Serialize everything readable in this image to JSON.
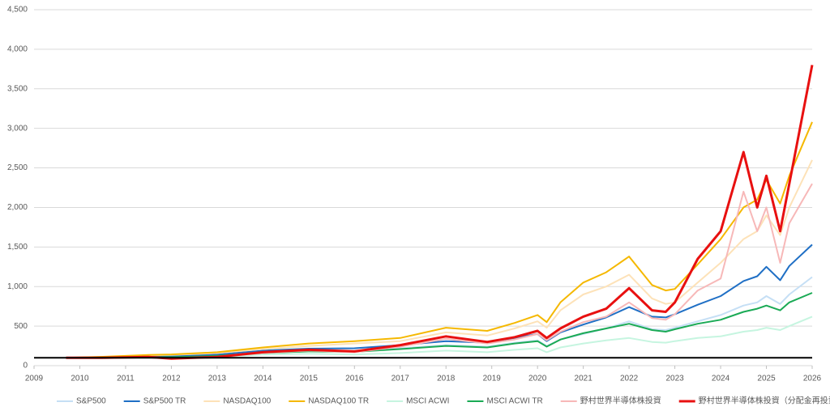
{
  "chart_data": {
    "type": "line",
    "x": [
      2009.7,
      2010.5,
      2011.5,
      2012,
      2013,
      2014,
      2015,
      2016,
      2017,
      2018,
      2018.9,
      2019.5,
      2020,
      2020.2,
      2020.5,
      2021,
      2021.5,
      2022,
      2022.5,
      2022.8,
      2023,
      2023.5,
      2024,
      2024.5,
      2024.8,
      2025,
      2025.3,
      2025.5,
      2026
    ],
    "series": [
      {
        "name": "S&P500",
        "color": "#c5dff5",
        "values": [
          100,
          105,
          115,
          110,
          130,
          170,
          190,
          190,
          220,
          260,
          240,
          290,
          320,
          250,
          330,
          400,
          470,
          560,
          460,
          450,
          480,
          560,
          640,
          760,
          800,
          880,
          780,
          900,
          1120
        ]
      },
      {
        "name": "S&P500 TR",
        "color": "#1f6fc5",
        "values": [
          100,
          107,
          120,
          118,
          140,
          190,
          215,
          220,
          260,
          310,
          290,
          350,
          400,
          310,
          420,
          520,
          610,
          740,
          620,
          610,
          650,
          770,
          880,
          1070,
          1130,
          1250,
          1080,
          1260,
          1530
        ]
      },
      {
        "name": "NASDAQ100",
        "color": "#fde2b8",
        "values": [
          100,
          110,
          130,
          135,
          160,
          210,
          250,
          280,
          310,
          420,
          380,
          470,
          560,
          480,
          700,
          900,
          1000,
          1150,
          850,
          780,
          800,
          1050,
          1300,
          1600,
          1700,
          1900,
          1650,
          2000,
          2600
        ]
      },
      {
        "name": "NASDAQ100 TR",
        "color": "#f5b800",
        "values": [
          100,
          112,
          135,
          142,
          170,
          230,
          280,
          310,
          350,
          480,
          440,
          540,
          640,
          550,
          800,
          1050,
          1180,
          1380,
          1020,
          950,
          970,
          1280,
          1600,
          2000,
          2100,
          2350,
          2050,
          2400,
          3080
        ]
      },
      {
        "name": "MSCI ACWI",
        "color": "#c6f5e0",
        "values": [
          100,
          100,
          105,
          100,
          110,
          140,
          150,
          140,
          160,
          190,
          170,
          200,
          220,
          170,
          230,
          280,
          320,
          350,
          300,
          290,
          310,
          350,
          370,
          430,
          450,
          480,
          450,
          500,
          620
        ]
      },
      {
        "name": "MSCI ACWI TR",
        "color": "#1aaa55",
        "values": [
          100,
          103,
          110,
          107,
          125,
          160,
          180,
          175,
          210,
          250,
          230,
          280,
          310,
          240,
          330,
          410,
          470,
          530,
          450,
          430,
          460,
          530,
          580,
          680,
          720,
          760,
          700,
          800,
          920
        ]
      },
      {
        "name": "野村世界半導体株投資",
        "color": "#f7b8b8",
        "values": [
          100,
          100,
          110,
          95,
          110,
          160,
          190,
          170,
          240,
          340,
          280,
          330,
          400,
          320,
          430,
          550,
          620,
          800,
          600,
          580,
          650,
          950,
          1100,
          2200,
          1700,
          2000,
          1300,
          1800,
          2300
        ]
      },
      {
        "name": "野村世界半導体株投資（分配金再投資）",
        "color": "#e81010",
        "values": [
          100,
          100,
          110,
          90,
          110,
          170,
          200,
          180,
          260,
          370,
          300,
          360,
          440,
          350,
          470,
          620,
          720,
          980,
          700,
          680,
          800,
          1350,
          1700,
          2700,
          2000,
          2400,
          1700,
          2300,
          3800
        ]
      }
    ],
    "baseline": 100,
    "xlim": [
      2009,
      2026
    ],
    "xticks": [
      2009,
      2010,
      2011,
      2012,
      2013,
      2014,
      2015,
      2016,
      2017,
      2018,
      2019,
      2020,
      2021,
      2022,
      2023,
      2024,
      2025,
      2026
    ],
    "ylim": [
      0,
      4500
    ],
    "yticks": [
      0,
      500,
      {
        "value": 1000,
        "label": "1,000"
      },
      {
        "value": 1500,
        "label": "1,500"
      },
      {
        "value": 2000,
        "label": "2,000"
      },
      {
        "value": 2500,
        "label": "2,500"
      },
      {
        "value": 3000,
        "label": "3,000"
      },
      {
        "value": 3500,
        "label": "3,500"
      },
      {
        "value": 4000,
        "label": "4,000"
      },
      {
        "value": 4500,
        "label": "4,500"
      }
    ],
    "grid": true,
    "legend": "bottom"
  }
}
